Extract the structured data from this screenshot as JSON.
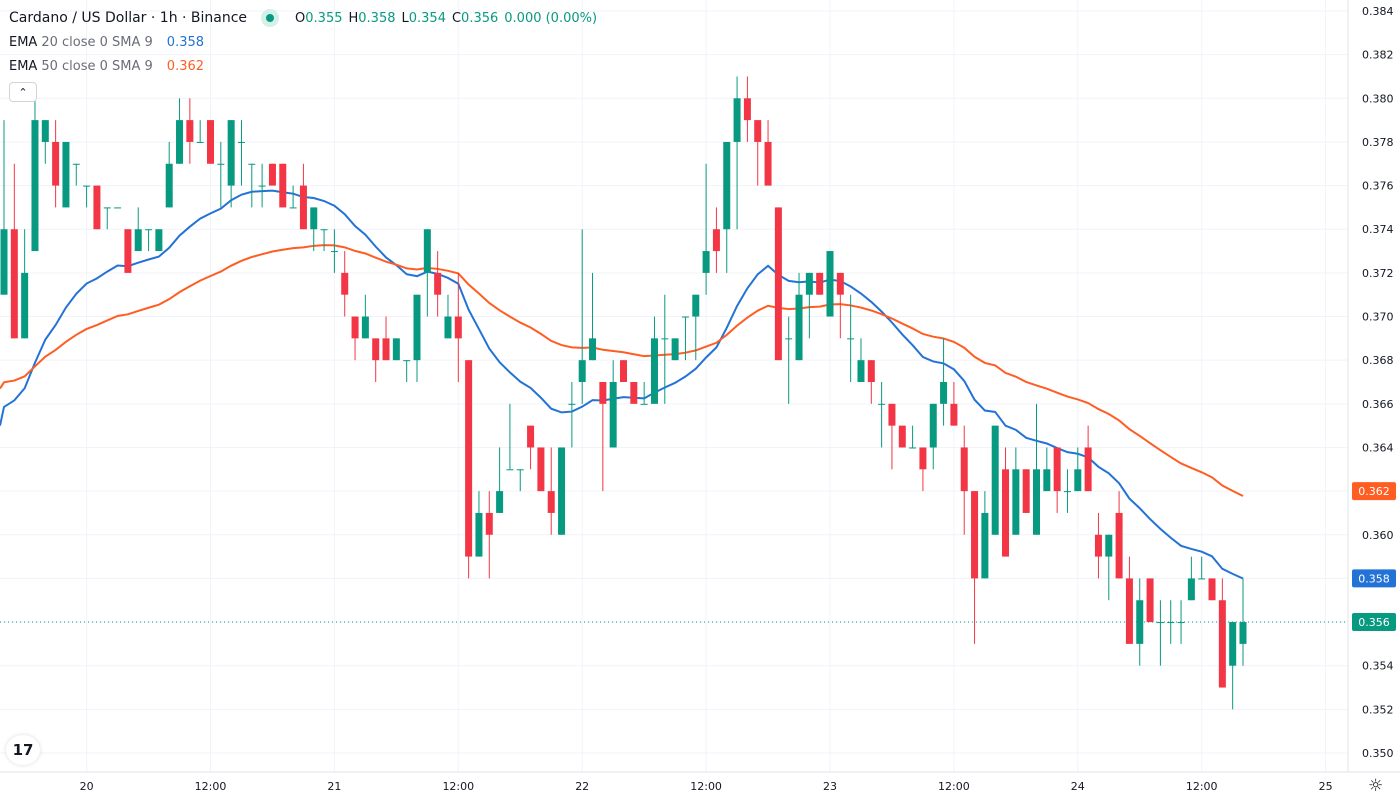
{
  "header": {
    "title": "Cardano / US Dollar · 1h · Binance",
    "ohlc": {
      "o_label": "O",
      "o": "0.355",
      "h_label": "H",
      "h": "0.358",
      "l_label": "L",
      "l": "0.354",
      "c_label": "C",
      "c": "0.356",
      "change": "0.000 (0.00%)"
    },
    "collapse_icon": "chevron-up-icon"
  },
  "indicators": [
    {
      "name": "EMA",
      "args": "20 close 0 SMA 9",
      "value": "0.358",
      "color": "#2372d6",
      "length": 20,
      "seed": 0.365
    },
    {
      "name": "EMA",
      "args": "50 close 0 SMA 9",
      "value": "0.362",
      "color": "#ff5d22",
      "length": 50,
      "seed": 0.3667
    }
  ],
  "colors": {
    "up": "#089981",
    "down": "#f23645",
    "grid": "#f0f3fa",
    "text": "#131722"
  },
  "price_axis": {
    "labels": [
      "0.384",
      "0.382",
      "0.380",
      "0.378",
      "0.376",
      "0.374",
      "0.372",
      "0.370",
      "0.368",
      "0.366",
      "0.364",
      "0.362",
      "0.360",
      "0.358",
      "0.356",
      "0.354",
      "0.352",
      "0.350"
    ],
    "current_price": {
      "value": "0.356",
      "color": "#089981"
    },
    "ema20_tag": {
      "value": "0.358",
      "color": "#2372d6"
    },
    "ema50_tag": {
      "value": "0.362",
      "color": "#ff5d22"
    }
  },
  "time_axis": {
    "labels": [
      {
        "text": "20",
        "candle": 8
      },
      {
        "text": "12:00",
        "candle": 20
      },
      {
        "text": "21",
        "candle": 32
      },
      {
        "text": "12:00",
        "candle": 44
      },
      {
        "text": "22",
        "candle": 56
      },
      {
        "text": "12:00",
        "candle": 68
      },
      {
        "text": "23",
        "candle": 80
      },
      {
        "text": "12:00",
        "candle": 92
      },
      {
        "text": "24",
        "candle": 104
      },
      {
        "text": "12:00",
        "candle": 116
      },
      {
        "text": "25",
        "candle": 128
      }
    ]
  },
  "chart_data": {
    "type": "candlestick",
    "title": "Cardano / US Dollar · 1h · Binance",
    "interval": "1h",
    "first_candle": "19 16:00",
    "ylim": [
      0.35,
      0.384
    ],
    "grid": true,
    "candles_ohlc": [
      [
        0.371,
        0.379,
        0.371,
        0.374
      ],
      [
        0.374,
        0.377,
        0.369,
        0.369
      ],
      [
        0.369,
        0.374,
        0.369,
        0.372
      ],
      [
        0.373,
        0.38,
        0.373,
        0.379
      ],
      [
        0.378,
        0.379,
        0.377,
        0.379
      ],
      [
        0.378,
        0.379,
        0.375,
        0.376
      ],
      [
        0.375,
        0.378,
        0.375,
        0.378
      ],
      [
        0.377,
        0.377,
        0.376,
        0.377
      ],
      [
        0.376,
        0.376,
        0.375,
        0.376
      ],
      [
        0.376,
        0.376,
        0.374,
        0.374
      ],
      [
        0.375,
        0.375,
        0.374,
        0.375
      ],
      [
        0.375,
        0.375,
        0.375,
        0.375
      ],
      [
        0.374,
        0.374,
        0.372,
        0.372
      ],
      [
        0.373,
        0.375,
        0.373,
        0.374
      ],
      [
        0.374,
        0.374,
        0.373,
        0.374
      ],
      [
        0.373,
        0.374,
        0.373,
        0.374
      ],
      [
        0.375,
        0.378,
        0.375,
        0.377
      ],
      [
        0.377,
        0.38,
        0.377,
        0.379
      ],
      [
        0.379,
        0.38,
        0.377,
        0.378
      ],
      [
        0.378,
        0.379,
        0.378,
        0.378
      ],
      [
        0.379,
        0.379,
        0.377,
        0.377
      ],
      [
        0.377,
        0.378,
        0.375,
        0.377
      ],
      [
        0.376,
        0.379,
        0.375,
        0.379
      ],
      [
        0.378,
        0.379,
        0.376,
        0.378
      ],
      [
        0.377,
        0.377,
        0.375,
        0.377
      ],
      [
        0.376,
        0.377,
        0.375,
        0.376
      ],
      [
        0.377,
        0.377,
        0.376,
        0.376
      ],
      [
        0.377,
        0.377,
        0.375,
        0.375
      ],
      [
        0.375,
        0.376,
        0.375,
        0.375
      ],
      [
        0.376,
        0.377,
        0.374,
        0.374
      ],
      [
        0.374,
        0.375,
        0.373,
        0.375
      ],
      [
        0.374,
        0.374,
        0.373,
        0.374
      ],
      [
        0.373,
        0.374,
        0.372,
        0.373
      ],
      [
        0.372,
        0.373,
        0.37,
        0.371
      ],
      [
        0.37,
        0.37,
        0.368,
        0.369
      ],
      [
        0.369,
        0.371,
        0.369,
        0.37
      ],
      [
        0.369,
        0.369,
        0.367,
        0.368
      ],
      [
        0.369,
        0.37,
        0.368,
        0.368
      ],
      [
        0.368,
        0.369,
        0.368,
        0.369
      ],
      [
        0.368,
        0.368,
        0.367,
        0.368
      ],
      [
        0.368,
        0.371,
        0.367,
        0.371
      ],
      [
        0.372,
        0.374,
        0.37,
        0.374
      ],
      [
        0.372,
        0.373,
        0.37,
        0.371
      ],
      [
        0.369,
        0.371,
        0.369,
        0.37
      ],
      [
        0.37,
        0.372,
        0.367,
        0.369
      ],
      [
        0.368,
        0.368,
        0.358,
        0.359
      ],
      [
        0.359,
        0.362,
        0.359,
        0.361
      ],
      [
        0.361,
        0.362,
        0.358,
        0.36
      ],
      [
        0.361,
        0.364,
        0.361,
        0.362
      ],
      [
        0.363,
        0.366,
        0.363,
        0.363
      ],
      [
        0.363,
        0.363,
        0.362,
        0.363
      ],
      [
        0.365,
        0.365,
        0.363,
        0.364
      ],
      [
        0.364,
        0.364,
        0.362,
        0.362
      ],
      [
        0.362,
        0.364,
        0.36,
        0.361
      ],
      [
        0.36,
        0.364,
        0.36,
        0.364
      ],
      [
        0.366,
        0.367,
        0.364,
        0.366
      ],
      [
        0.367,
        0.374,
        0.366,
        0.368
      ],
      [
        0.368,
        0.372,
        0.368,
        0.369
      ],
      [
        0.367,
        0.367,
        0.362,
        0.366
      ],
      [
        0.364,
        0.368,
        0.364,
        0.367
      ],
      [
        0.368,
        0.368,
        0.367,
        0.367
      ],
      [
        0.367,
        0.367,
        0.366,
        0.366
      ],
      [
        0.366,
        0.367,
        0.366,
        0.366
      ],
      [
        0.366,
        0.37,
        0.366,
        0.369
      ],
      [
        0.369,
        0.371,
        0.366,
        0.369
      ],
      [
        0.368,
        0.369,
        0.368,
        0.369
      ],
      [
        0.37,
        0.37,
        0.368,
        0.37
      ],
      [
        0.37,
        0.371,
        0.368,
        0.371
      ],
      [
        0.372,
        0.377,
        0.371,
        0.373
      ],
      [
        0.374,
        0.375,
        0.372,
        0.373
      ],
      [
        0.374,
        0.378,
        0.372,
        0.378
      ],
      [
        0.378,
        0.381,
        0.374,
        0.38
      ],
      [
        0.38,
        0.381,
        0.378,
        0.379
      ],
      [
        0.379,
        0.379,
        0.376,
        0.378
      ],
      [
        0.378,
        0.379,
        0.376,
        0.376
      ],
      [
        0.375,
        0.375,
        0.368,
        0.368
      ],
      [
        0.369,
        0.37,
        0.366,
        0.369
      ],
      [
        0.368,
        0.372,
        0.368,
        0.371
      ],
      [
        0.371,
        0.372,
        0.369,
        0.372
      ],
      [
        0.372,
        0.372,
        0.371,
        0.371
      ],
      [
        0.37,
        0.373,
        0.37,
        0.373
      ],
      [
        0.372,
        0.372,
        0.369,
        0.371
      ],
      [
        0.369,
        0.371,
        0.367,
        0.369
      ],
      [
        0.367,
        0.369,
        0.367,
        0.368
      ],
      [
        0.368,
        0.368,
        0.366,
        0.367
      ],
      [
        0.366,
        0.367,
        0.364,
        0.366
      ],
      [
        0.366,
        0.366,
        0.363,
        0.365
      ],
      [
        0.365,
        0.365,
        0.364,
        0.364
      ],
      [
        0.364,
        0.365,
        0.364,
        0.364
      ],
      [
        0.364,
        0.364,
        0.362,
        0.363
      ],
      [
        0.364,
        0.366,
        0.363,
        0.366
      ],
      [
        0.366,
        0.369,
        0.365,
        0.367
      ],
      [
        0.366,
        0.367,
        0.365,
        0.365
      ],
      [
        0.364,
        0.365,
        0.36,
        0.362
      ],
      [
        0.362,
        0.362,
        0.355,
        0.358
      ],
      [
        0.358,
        0.362,
        0.358,
        0.361
      ],
      [
        0.36,
        0.365,
        0.36,
        0.365
      ],
      [
        0.363,
        0.364,
        0.359,
        0.359
      ],
      [
        0.36,
        0.364,
        0.36,
        0.363
      ],
      [
        0.363,
        0.363,
        0.361,
        0.361
      ],
      [
        0.36,
        0.366,
        0.36,
        0.363
      ],
      [
        0.362,
        0.364,
        0.362,
        0.363
      ],
      [
        0.364,
        0.364,
        0.361,
        0.362
      ],
      [
        0.362,
        0.363,
        0.361,
        0.362
      ],
      [
        0.362,
        0.364,
        0.362,
        0.363
      ],
      [
        0.364,
        0.365,
        0.362,
        0.362
      ],
      [
        0.36,
        0.361,
        0.358,
        0.359
      ],
      [
        0.359,
        0.36,
        0.357,
        0.36
      ],
      [
        0.361,
        0.362,
        0.358,
        0.358
      ],
      [
        0.358,
        0.359,
        0.355,
        0.355
      ],
      [
        0.355,
        0.358,
        0.354,
        0.357
      ],
      [
        0.358,
        0.358,
        0.356,
        0.356
      ],
      [
        0.356,
        0.357,
        0.354,
        0.356
      ],
      [
        0.356,
        0.357,
        0.355,
        0.356
      ],
      [
        0.356,
        0.357,
        0.355,
        0.356
      ],
      [
        0.357,
        0.359,
        0.357,
        0.358
      ],
      [
        0.358,
        0.359,
        0.358,
        0.358
      ],
      [
        0.358,
        0.358,
        0.357,
        0.357
      ],
      [
        0.357,
        0.358,
        0.353,
        0.353
      ],
      [
        0.354,
        0.356,
        0.352,
        0.356
      ],
      [
        0.355,
        0.358,
        0.354,
        0.356
      ]
    ]
  }
}
